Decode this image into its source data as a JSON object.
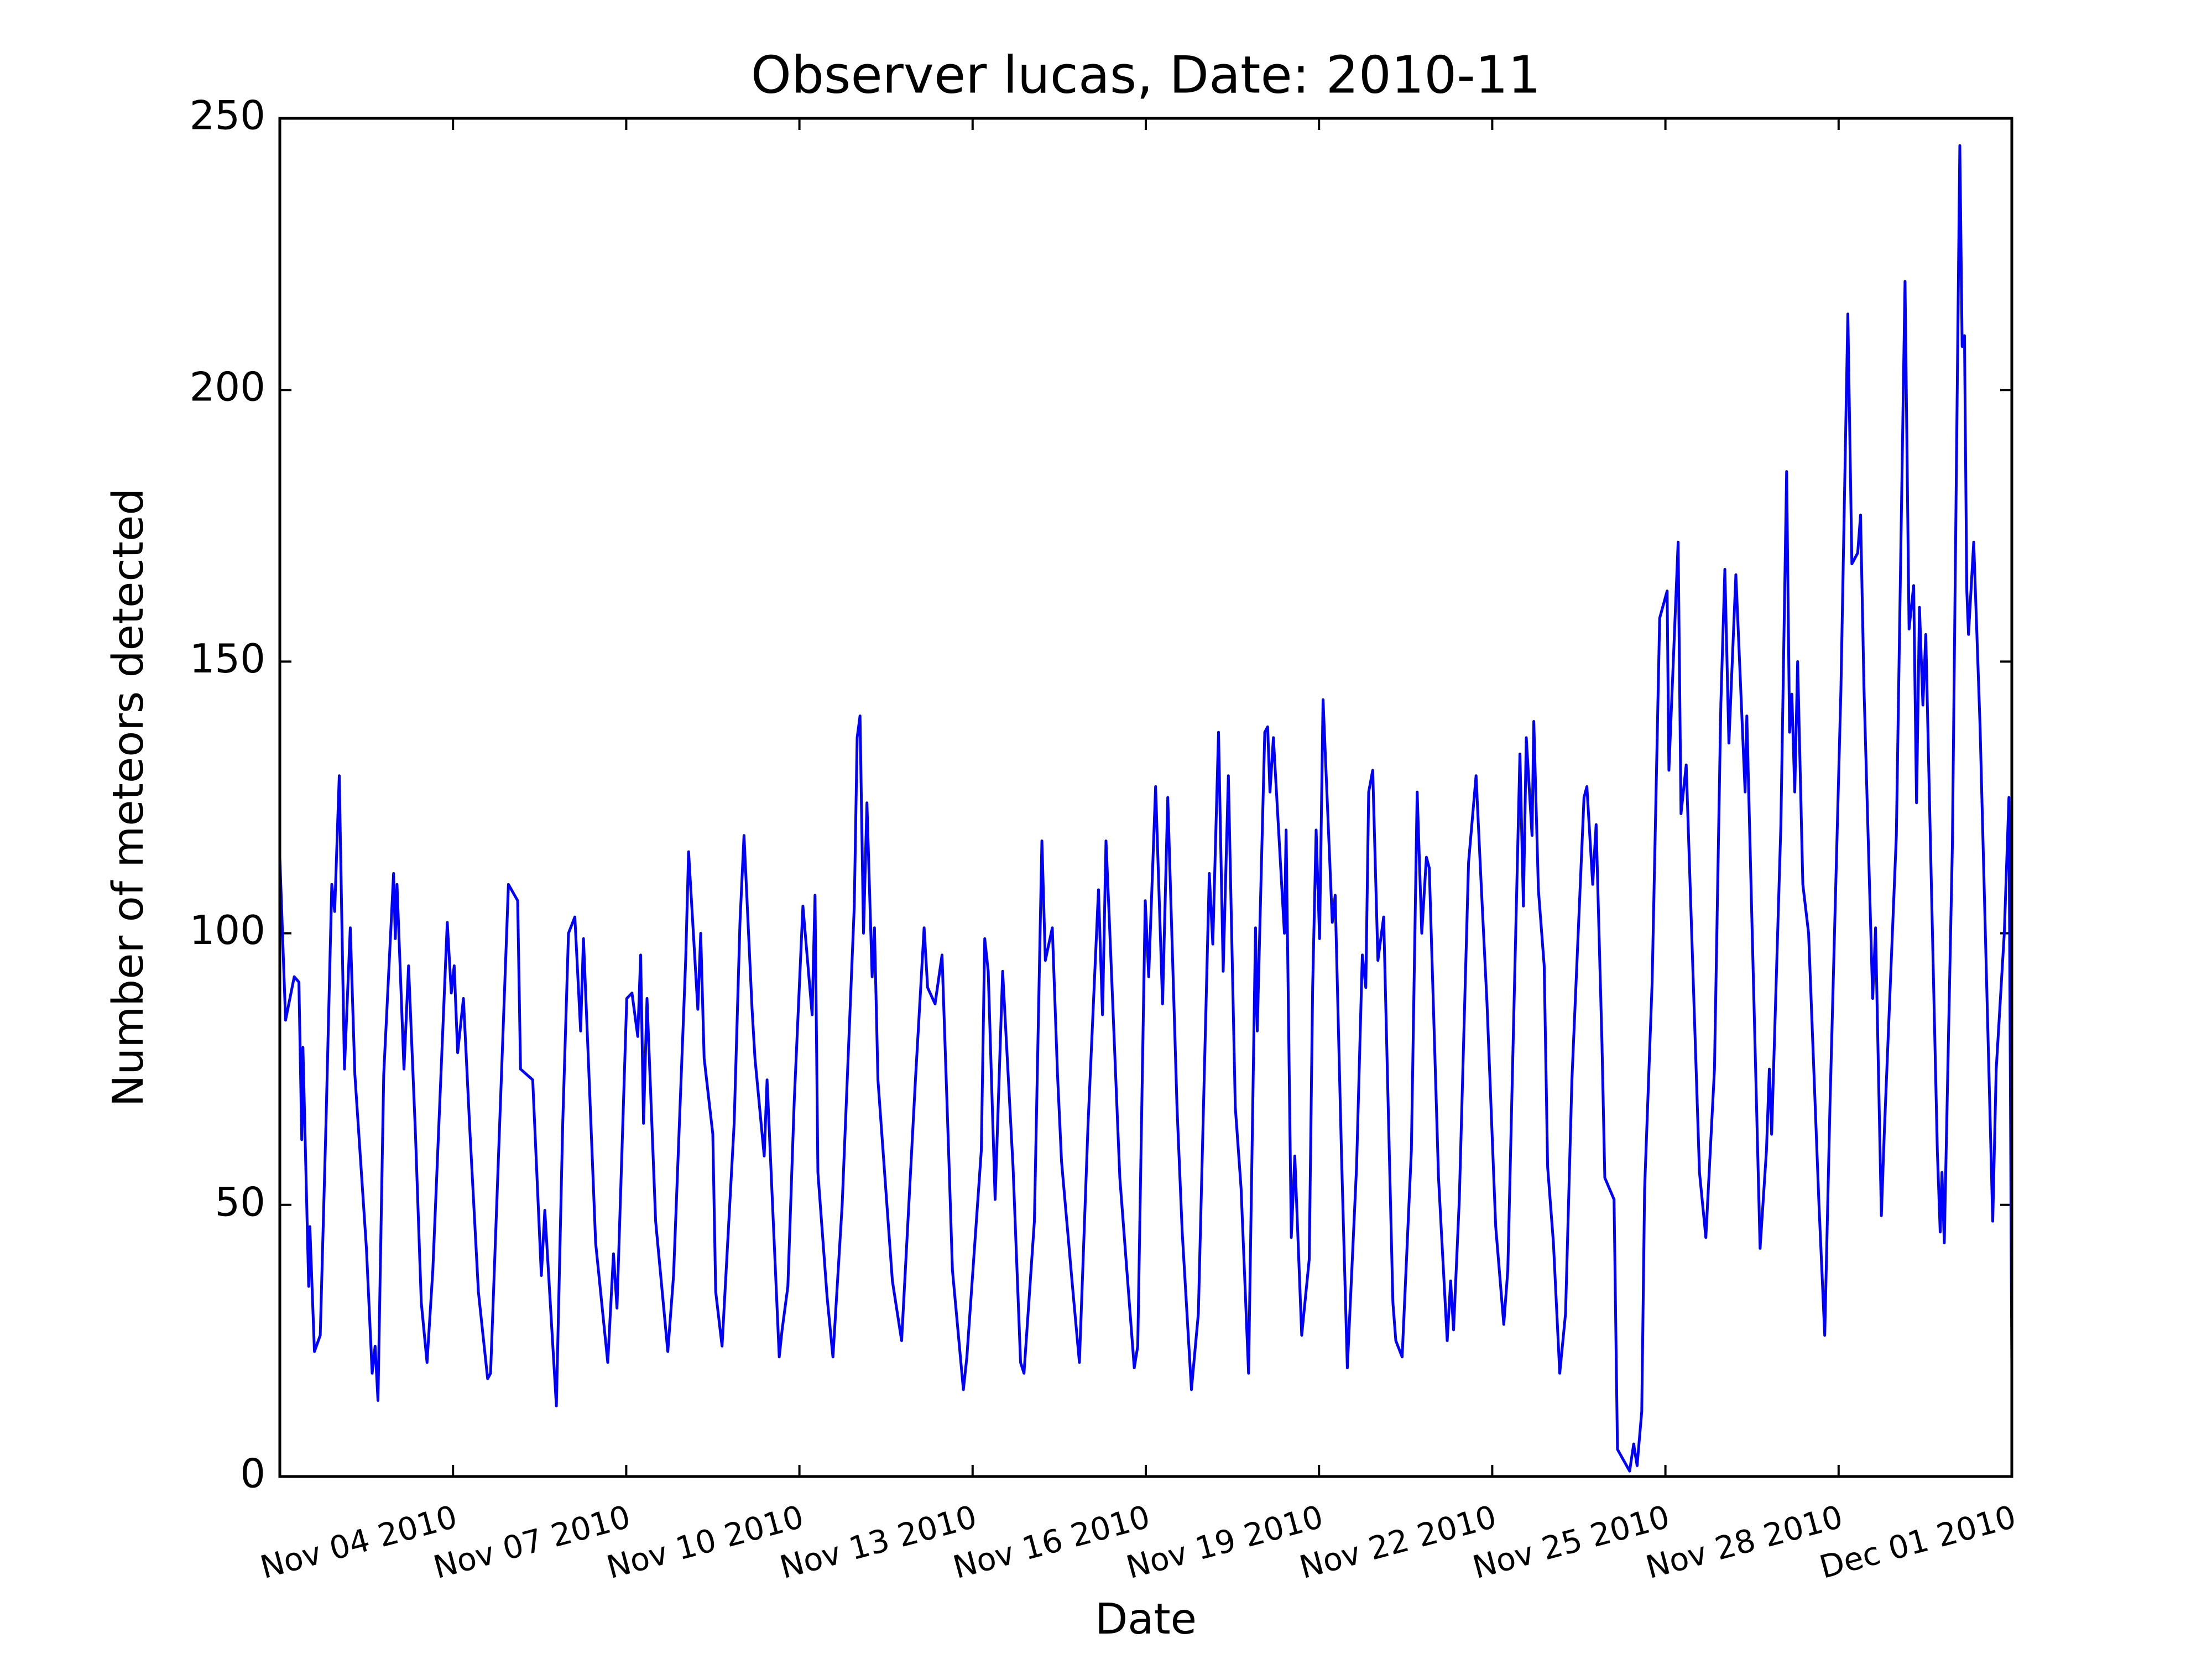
{
  "chart_data": {
    "type": "line",
    "title": "Observer lucas, Date: 2010-11",
    "xlabel": "Date",
    "ylabel": "Number of meteors detected",
    "xlim": [
      1,
      31
    ],
    "ylim": [
      0,
      250
    ],
    "xticks": [
      {
        "value": 4,
        "label": "Nov 04 2010"
      },
      {
        "value": 7,
        "label": "Nov 07 2010"
      },
      {
        "value": 10,
        "label": "Nov 10 2010"
      },
      {
        "value": 13,
        "label": "Nov 13 2010"
      },
      {
        "value": 16,
        "label": "Nov 16 2010"
      },
      {
        "value": 19,
        "label": "Nov 19 2010"
      },
      {
        "value": 22,
        "label": "Nov 22 2010"
      },
      {
        "value": 25,
        "label": "Nov 25 2010"
      },
      {
        "value": 28,
        "label": "Nov 28 2010"
      },
      {
        "value": 31,
        "label": "Dec 01 2010"
      }
    ],
    "yticks": [
      0,
      50,
      100,
      150,
      200,
      250
    ],
    "grid": false,
    "color": "#0000ff",
    "x": [
      1.0,
      1.1,
      1.25,
      1.33,
      1.38,
      1.4,
      1.5,
      1.52,
      1.6,
      1.7,
      1.8,
      1.9,
      1.95,
      2.03,
      2.12,
      2.22,
      2.3,
      2.5,
      2.6,
      2.65,
      2.7,
      2.8,
      2.97,
      3.0,
      3.03,
      3.15,
      3.23,
      3.35,
      3.45,
      3.55,
      3.65,
      3.9,
      3.97,
      4.02,
      4.08,
      4.18,
      4.29,
      4.44,
      4.6,
      4.65,
      4.96,
      5.12,
      5.17,
      5.38,
      5.53,
      5.59,
      5.79,
      5.9,
      6.0,
      6.11,
      6.21,
      6.26,
      6.37,
      6.47,
      6.68,
      6.78,
      6.84,
      7.01,
      7.1,
      7.2,
      7.25,
      7.3,
      7.36,
      7.51,
      7.72,
      7.82,
      8.03,
      8.08,
      8.24,
      8.29,
      8.35,
      8.5,
      8.55,
      8.66,
      8.87,
      8.97,
      9.04,
      9.18,
      9.23,
      9.39,
      9.44,
      9.65,
      9.7,
      9.8,
      9.91,
      10.06,
      10.22,
      10.27,
      10.32,
      10.48,
      10.58,
      10.74,
      10.95,
      11.0,
      11.05,
      11.11,
      11.17,
      11.26,
      11.3,
      11.36,
      11.61,
      11.77,
      12.01,
      12.16,
      12.22,
      12.35,
      12.47,
      12.59,
      12.65,
      12.84,
      12.9,
      13.15,
      13.21,
      13.27,
      13.39,
      13.52,
      13.7,
      13.83,
      13.89,
      14.07,
      14.2,
      14.26,
      14.38,
      14.47,
      14.54,
      14.73,
      14.85,
      15.0,
      15.18,
      15.25,
      15.31,
      15.37,
      15.55,
      15.8,
      15.86,
      15.99,
      16.05,
      16.17,
      16.29,
      16.38,
      16.54,
      16.63,
      16.79,
      16.91,
      17.1,
      17.16,
      17.26,
      17.34,
      17.43,
      17.55,
      17.65,
      17.78,
      17.9,
      17.93,
      18.06,
      18.11,
      18.15,
      18.21,
      18.4,
      18.43,
      18.52,
      18.58,
      18.7,
      18.83,
      18.89,
      18.95,
      19.01,
      19.07,
      19.23,
      19.28,
      19.39,
      19.49,
      19.65,
      19.75,
      19.81,
      19.86,
      19.93,
      20.02,
      20.12,
      20.28,
      20.33,
      20.44,
      20.6,
      20.7,
      20.78,
      20.86,
      20.91,
      21.07,
      21.22,
      21.28,
      21.33,
      21.43,
      21.59,
      21.72,
      21.8,
      21.91,
      22.06,
      22.2,
      22.27,
      22.48,
      22.54,
      22.59,
      22.69,
      22.72,
      22.8,
      22.9,
      22.96,
      23.06,
      23.17,
      23.27,
      23.38,
      23.59,
      23.64,
      23.74,
      23.8,
      23.9,
      23.95,
      24.11,
      24.17,
      24.38,
      24.45,
      24.51,
      24.59,
      24.64,
      24.77,
      24.9,
      25.03,
      25.06,
      25.22,
      25.27,
      25.36,
      25.59,
      25.7,
      25.85,
      25.96,
      26.03,
      26.1,
      26.22,
      26.38,
      26.41,
      26.64,
      26.75,
      26.8,
      26.84,
      27.0,
      27.1,
      27.15,
      27.19,
      27.24,
      27.29,
      27.38,
      27.48,
      27.66,
      27.76,
      27.85,
      28.04,
      28.16,
      28.23,
      28.33,
      28.38,
      28.44,
      28.59,
      28.64,
      28.74,
      28.79,
      29.0,
      29.15,
      29.22,
      29.3,
      29.35,
      29.4,
      29.46,
      29.51,
      29.71,
      29.76,
      29.79,
      29.83,
      29.97,
      30.1,
      30.14,
      30.18,
      30.22,
      30.25,
      30.34,
      30.45,
      30.67,
      30.73,
      30.87,
      30.95,
      31.0
    ],
    "values": [
      114,
      84,
      92,
      91,
      62,
      79,
      35,
      46,
      23,
      26,
      65,
      109,
      104,
      129,
      75,
      101,
      74,
      42,
      19,
      24,
      14,
      74,
      111,
      99,
      109,
      75,
      94,
      63,
      32,
      21,
      38,
      102,
      89,
      94,
      78,
      88,
      64,
      34,
      18,
      19,
      109,
      106,
      75,
      73,
      37,
      49,
      13,
      65,
      100,
      103,
      82,
      99,
      70,
      43,
      21,
      41,
      31,
      88,
      89,
      81,
      96,
      65,
      88,
      47,
      23,
      37,
      95,
      115,
      86,
      100,
      77,
      63,
      34,
      24,
      65,
      102,
      118,
      86,
      77,
      59,
      73,
      22,
      27,
      35,
      69,
      105,
      85,
      107,
      56,
      33,
      22,
      50,
      105,
      136,
      140,
      100,
      124,
      92,
      101,
      73,
      36,
      25,
      73,
      101,
      90,
      87,
      96,
      58,
      38,
      16,
      22,
      60,
      99,
      93,
      51,
      93,
      57,
      21,
      19,
      47,
      117,
      95,
      101,
      74,
      58,
      35,
      21,
      65,
      108,
      85,
      117,
      102,
      55,
      20,
      24,
      106,
      92,
      127,
      87,
      125,
      68,
      45,
      16,
      30,
      111,
      98,
      137,
      93,
      129,
      68,
      53,
      19,
      101,
      82,
      137,
      138,
      126,
      136,
      100,
      119,
      44,
      59,
      26,
      40,
      90,
      119,
      99,
      143,
      102,
      107,
      59,
      20,
      57,
      96,
      90,
      126,
      130,
      95,
      103,
      32,
      25,
      22,
      60,
      126,
      100,
      114,
      112,
      55,
      25,
      36,
      27,
      51,
      113,
      129,
      111,
      87,
      46,
      28,
      38,
      133,
      105,
      136,
      118,
      139,
      108,
      94,
      57,
      43,
      19,
      30,
      73,
      125,
      127,
      109,
      120,
      80,
      55,
      51,
      5,
      1,
      6,
      2,
      12,
      53,
      91,
      158,
      163,
      130,
      172,
      122,
      131,
      56,
      44,
      75,
      142,
      167,
      135,
      166,
      126,
      140,
      42,
      60,
      75,
      63,
      120,
      185,
      137,
      144,
      126,
      150,
      109,
      100,
      50,
      26,
      68,
      145,
      214,
      168,
      170,
      177,
      145,
      88,
      101,
      48,
      63,
      118,
      220,
      156,
      164,
      124,
      160,
      142,
      155,
      60,
      45,
      56,
      43,
      116,
      245,
      208,
      210,
      163,
      155,
      172,
      138,
      47,
      75,
      100,
      125,
      20
    ]
  }
}
